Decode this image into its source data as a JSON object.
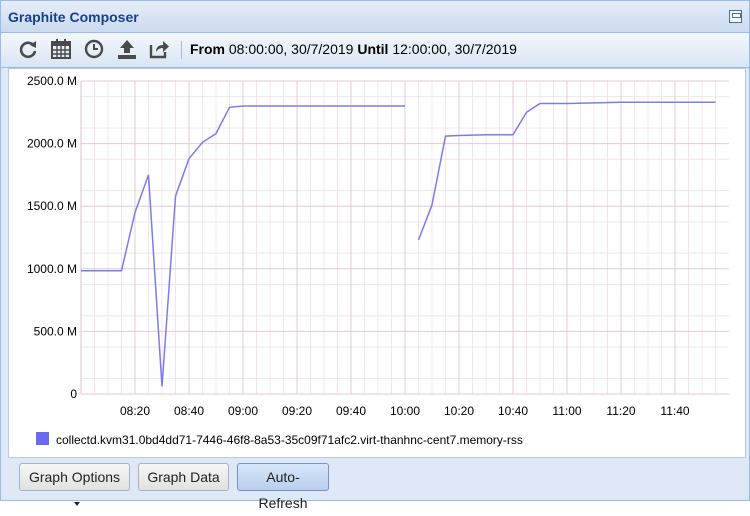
{
  "window": {
    "title": "Graphite Composer"
  },
  "toolbar": {
    "icons": [
      "refresh-icon",
      "calendar-icon",
      "clock-icon",
      "upload-icon",
      "share-icon"
    ],
    "from_label": "From",
    "from_value": "08:00:00, 30/7/2019",
    "until_label": "Until",
    "until_value": "12:00:00, 30/7/2019"
  },
  "buttons": {
    "graph_options": "Graph Options",
    "graph_data": "Graph Data",
    "auto_refresh": "Auto-Refresh"
  },
  "colors": {
    "series": "#7b7bf0",
    "grid_major": "#e4c9d8",
    "grid_minor": "#f3e4ec",
    "legend_swatch": "#6a6af0"
  },
  "chart_data": {
    "type": "line",
    "title": "",
    "xlabel": "",
    "ylabel": "",
    "xlim": [
      "08:00",
      "12:00"
    ],
    "ylim": [
      0,
      2500
    ],
    "unit": "M",
    "yticks": [
      "0",
      "500.0 M",
      "1000.0 M",
      "1500.0 M",
      "2000.0 M",
      "2500.0 M"
    ],
    "xticks": [
      "08:20",
      "08:40",
      "09:00",
      "09:20",
      "09:40",
      "10:00",
      "10:20",
      "10:40",
      "11:00",
      "11:20",
      "11:40"
    ],
    "legend": "collectd.kvm31.0bd4dd71-7446-46f8-8a53-35c09f71afc2.virt-thanhnc-cent7.memory-rss",
    "legend_position": "bottom-left",
    "grid": true,
    "series": [
      {
        "name": "collectd.kvm31.0bd4dd71-7446-46f8-8a53-35c09f71afc2.virt-thanhnc-cent7.memory-rss",
        "segments": [
          [
            [
              "08:00",
              985
            ],
            [
              "08:05",
              985
            ],
            [
              "08:10",
              985
            ],
            [
              "08:15",
              985
            ],
            [
              "08:20",
              1450
            ],
            [
              "08:25",
              1750
            ],
            [
              "08:30",
              60
            ],
            [
              "08:35",
              1580
            ],
            [
              "08:40",
              1880
            ],
            [
              "08:45",
              2010
            ],
            [
              "08:50",
              2080
            ],
            [
              "08:55",
              2290
            ],
            [
              "09:00",
              2300
            ],
            [
              "09:10",
              2300
            ],
            [
              "09:20",
              2300
            ],
            [
              "09:30",
              2300
            ],
            [
              "09:40",
              2300
            ],
            [
              "09:50",
              2300
            ],
            [
              "10:00",
              2300
            ]
          ],
          [
            [
              "10:05",
              1230
            ],
            [
              "10:10",
              1510
            ],
            [
              "10:15",
              2060
            ],
            [
              "10:20",
              2065
            ],
            [
              "10:30",
              2070
            ],
            [
              "10:40",
              2070
            ],
            [
              "10:45",
              2250
            ],
            [
              "10:50",
              2320
            ],
            [
              "11:00",
              2320
            ],
            [
              "11:10",
              2325
            ],
            [
              "11:20",
              2330
            ],
            [
              "11:30",
              2330
            ],
            [
              "11:40",
              2330
            ],
            [
              "11:55",
              2330
            ]
          ]
        ]
      }
    ]
  }
}
